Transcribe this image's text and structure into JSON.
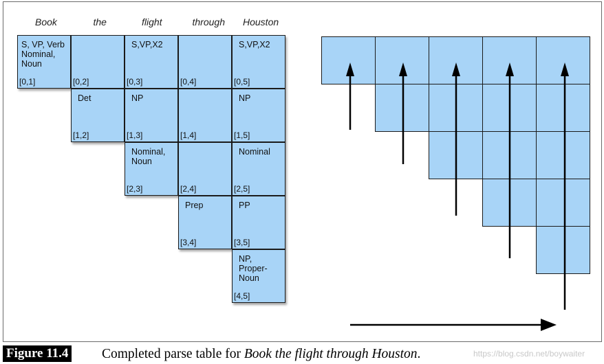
{
  "words": [
    "Book",
    "the",
    "flight",
    "through",
    "Houston"
  ],
  "table": {
    "cells": [
      {
        "row": 0,
        "col": 1,
        "label": "S, VP, Verb\nNominal,\nNoun",
        "span": "[0,1]"
      },
      {
        "row": 0,
        "col": 2,
        "label": "",
        "span": "[0,2]"
      },
      {
        "row": 0,
        "col": 3,
        "label": "S,VP,X2",
        "span": "[0,3]"
      },
      {
        "row": 0,
        "col": 4,
        "label": "",
        "span": "[0,4]"
      },
      {
        "row": 0,
        "col": 5,
        "label": "S,VP,X2",
        "span": "[0,5]"
      },
      {
        "row": 1,
        "col": 2,
        "label": "Det",
        "span": "[1,2]"
      },
      {
        "row": 1,
        "col": 3,
        "label": "NP",
        "span": "[1,3]"
      },
      {
        "row": 1,
        "col": 4,
        "label": "",
        "span": "[1,4]"
      },
      {
        "row": 1,
        "col": 5,
        "label": "NP",
        "span": "[1,5]"
      },
      {
        "row": 2,
        "col": 3,
        "label": "Nominal,\nNoun",
        "span": "[2,3]"
      },
      {
        "row": 2,
        "col": 4,
        "label": "",
        "span": "[2,4]"
      },
      {
        "row": 2,
        "col": 5,
        "label": "Nominal",
        "span": "[2,5]"
      },
      {
        "row": 3,
        "col": 4,
        "label": "Prep",
        "span": "[3,4]"
      },
      {
        "row": 3,
        "col": 5,
        "label": "PP",
        "span": "[3,5]"
      },
      {
        "row": 4,
        "col": 5,
        "label": "NP,\nProper-\nNoun",
        "span": "[4,5]"
      }
    ]
  },
  "fill_order_grid": {
    "size": 5
  },
  "caption": {
    "figure_label": "Figure 11.4",
    "text": "Completed parse table for ",
    "italic": "Book the flight through Houston",
    "end": "."
  },
  "watermark": "https://blog.csdn.net/boywaiter"
}
